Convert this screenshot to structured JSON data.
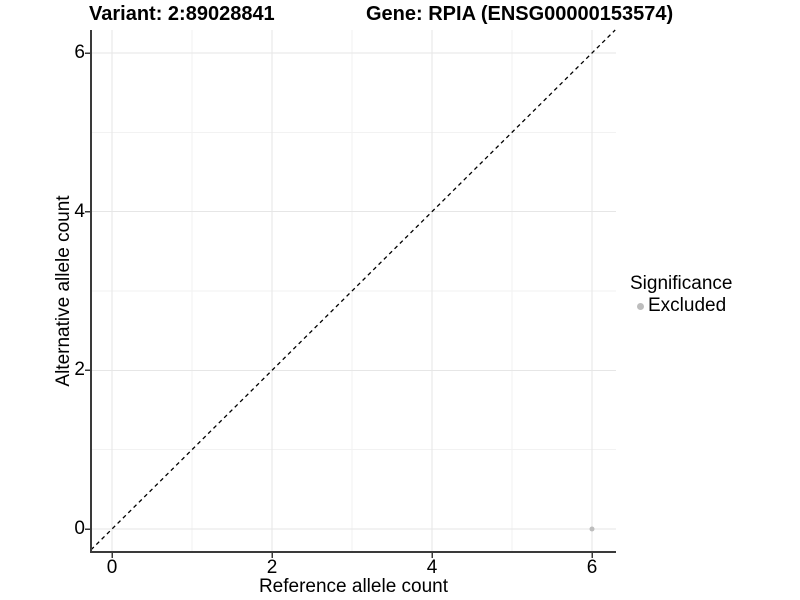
{
  "chart_data": {
    "type": "scatter",
    "titles": {
      "left": "Variant: 2:89028841",
      "right": "Gene: RPIA (ENSG00000153574)"
    },
    "xlabel": "Reference allele count",
    "ylabel": "Alternative allele count",
    "x_ticks": [
      0,
      2,
      4,
      6
    ],
    "y_ticks": [
      0,
      2,
      4,
      6
    ],
    "x_minor_ticks": [
      1,
      3,
      5
    ],
    "y_minor_ticks": [
      1,
      3,
      5
    ],
    "xlim": [
      -0.26,
      6.3
    ],
    "ylim": [
      -0.29,
      6.29
    ],
    "grid": "major-and-minor",
    "reference_line": {
      "type": "identity",
      "slope": 1,
      "intercept": 0,
      "style": "dashed",
      "color": "#000000"
    },
    "series": [
      {
        "name": "Excluded",
        "color": "#bdbdbd",
        "points": [
          {
            "x": 6,
            "y": 0
          }
        ]
      }
    ],
    "legend": {
      "title": "Significance",
      "position": "right",
      "items": [
        {
          "label": "Excluded",
          "color": "#bdbdbd"
        }
      ]
    },
    "colors": {
      "grid_major": "#e6e6e6",
      "grid_minor": "#f2f2f2",
      "axis_line": "#3a3a3a",
      "text": "#000000",
      "background": "#ffffff"
    }
  }
}
